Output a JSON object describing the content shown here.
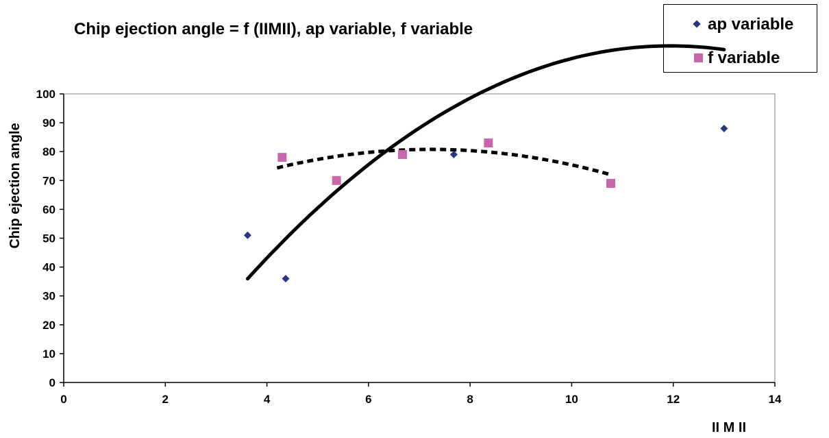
{
  "chart_data": {
    "type": "scatter",
    "title": "Chip ejection angle = f (IIMII), ap variable, f variable",
    "xlabel": "II M II",
    "ylabel": "Chip ejection angle",
    "xlim": [
      0,
      14
    ],
    "ylim": [
      0,
      100
    ],
    "x_ticks": [
      "0",
      "2",
      "4",
      "6",
      "8",
      "10",
      "12",
      "14"
    ],
    "y_ticks": [
      "0",
      "10",
      "20",
      "30",
      "40",
      "50",
      "60",
      "70",
      "80",
      "90",
      "100"
    ],
    "grid": false,
    "legend": "top-right",
    "series": [
      {
        "name": "ap variable",
        "marker": "diamond",
        "color": "#283582",
        "points": [
          [
            3.62,
            51
          ],
          [
            4.37,
            36
          ],
          [
            7.68,
            79
          ],
          [
            13.0,
            88
          ]
        ],
        "trendline": {
          "style": "solid",
          "color": "#000000",
          "x_range": [
            3.62,
            13.0
          ],
          "coeffs": [
            -49.55,
            27.83,
            -1.165
          ]
        }
      },
      {
        "name": "f variable",
        "marker": "square",
        "color": "#cc66aa",
        "points": [
          [
            4.3,
            78
          ],
          [
            5.37,
            70
          ],
          [
            6.67,
            79
          ],
          [
            8.36,
            83
          ],
          [
            10.77,
            69
          ]
        ],
        "trendline": {
          "style": "dashed",
          "color": "#000000",
          "x_range": [
            4.2,
            10.77
          ],
          "coeffs": [
            44.2,
            10.12,
            -0.7
          ]
        }
      }
    ]
  }
}
